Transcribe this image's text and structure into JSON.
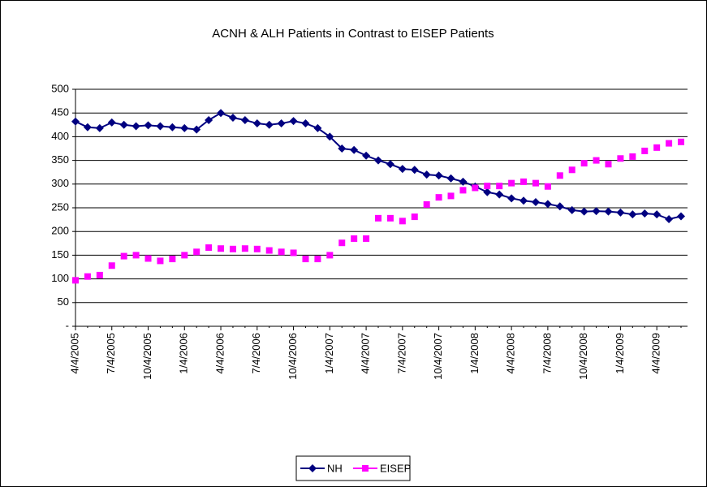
{
  "chart_data": {
    "type": "line",
    "title": "ACNH & ALH Patients in Contrast to EISEP Patients",
    "categories": [
      "4/4/2005",
      null,
      null,
      "7/4/2005",
      null,
      null,
      "10/4/2005",
      null,
      null,
      "1/4/2006",
      null,
      null,
      "4/4/2006",
      null,
      null,
      "7/4/2006",
      null,
      null,
      "10/4/2006",
      null,
      null,
      "1/4/2007",
      null,
      null,
      "4/4/2007",
      null,
      null,
      "7/4/2007",
      null,
      null,
      "10/4/2007",
      null,
      null,
      "1/4/2008",
      null,
      null,
      "4/4/2008",
      null,
      null,
      "7/4/2008",
      null,
      null,
      "10/4/2008",
      null,
      null,
      "1/4/2009",
      null,
      null,
      "4/4/2009",
      null,
      null
    ],
    "series": [
      {
        "name": "NH",
        "color": "#000080",
        "marker": "diamond",
        "line": true,
        "values": [
          432,
          420,
          418,
          430,
          425,
          422,
          424,
          422,
          420,
          418,
          415,
          435,
          450,
          440,
          435,
          428,
          425,
          428,
          433,
          428,
          418,
          400,
          375,
          372,
          360,
          350,
          342,
          332,
          330,
          320,
          318,
          312,
          305,
          295,
          283,
          278,
          270,
          265,
          262,
          258,
          253,
          245,
          242,
          243,
          242,
          240,
          236,
          238,
          236,
          226,
          232
        ]
      },
      {
        "name": "EISEP",
        "color": "#ff00ff",
        "marker": "square",
        "line": false,
        "values": [
          97,
          105,
          108,
          128,
          148,
          150,
          143,
          138,
          142,
          150,
          157,
          166,
          164,
          163,
          164,
          163,
          160,
          157,
          155,
          142,
          142,
          150,
          176,
          185,
          185,
          228,
          228,
          222,
          231,
          257,
          272,
          275,
          287,
          292,
          296,
          296,
          302,
          305,
          302,
          295,
          318,
          330,
          344,
          350,
          342,
          354,
          358,
          370,
          377,
          386,
          389
        ]
      }
    ],
    "ylim": [
      0,
      500
    ],
    "yticks": [
      {
        "value": 0,
        "label": "-"
      },
      50,
      100,
      150,
      200,
      250,
      300,
      350,
      400,
      450,
      500
    ],
    "grid": true,
    "legend": "bottom"
  }
}
